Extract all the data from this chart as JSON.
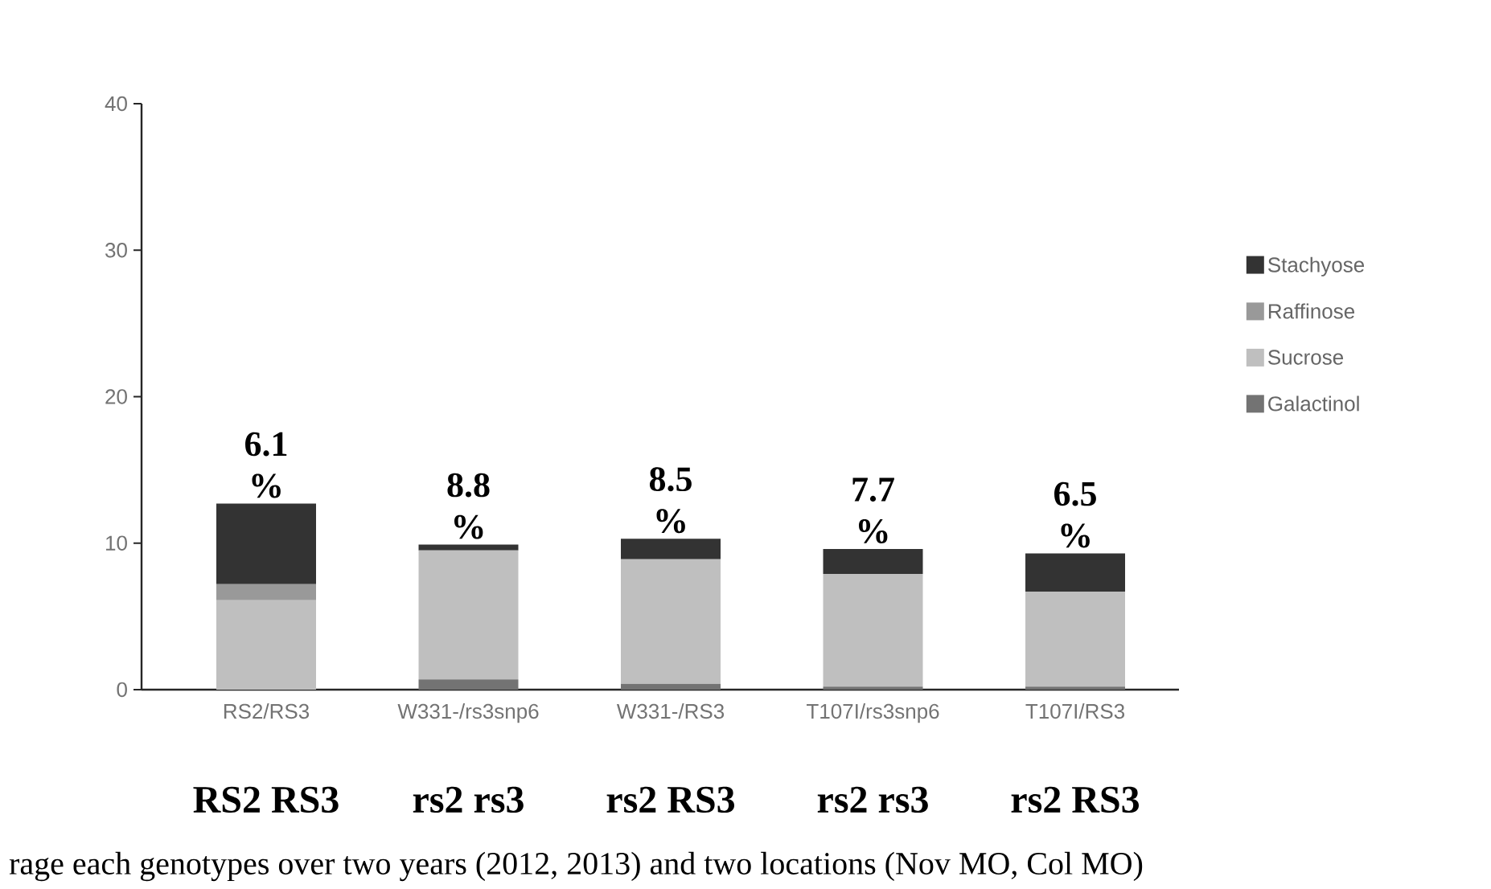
{
  "chart_data": {
    "type": "bar",
    "stacked": true,
    "categories": [
      "RS2/RS3",
      "W331-/rs3snp6",
      "W331-/RS3",
      "T107I/rs3snp6",
      "T107I/RS3"
    ],
    "series": [
      {
        "name": "Galactinol",
        "color": "#737373",
        "values": [
          0,
          0.7,
          0.4,
          0.2,
          0.2
        ]
      },
      {
        "name": "Sucrose",
        "color": "#bfbfbf",
        "values": [
          6.1,
          8.8,
          8.5,
          7.7,
          6.5
        ]
      },
      {
        "name": "Raffinose",
        "color": "#999999",
        "values": [
          1.1,
          0,
          0,
          0,
          0
        ]
      },
      {
        "name": "Stachyose",
        "color": "#333333",
        "values": [
          5.5,
          0.4,
          1.4,
          1.7,
          2.6
        ]
      }
    ],
    "ylim": [
      0,
      40
    ],
    "yticks": [
      0,
      10,
      20,
      30,
      40
    ],
    "grid": false,
    "legend": "right",
    "annotations": [
      "6.1 %",
      "8.8 %",
      "8.5 %",
      "7.7 %",
      "6.5 %",
      "RS2 RS3",
      "rs2 rs3",
      "rs2 RS3",
      "rs2 rs3",
      "rs2 RS3",
      "rage each genotypes over two years (2012, 2013) and two locations (Nov MO, Col MO)"
    ]
  }
}
